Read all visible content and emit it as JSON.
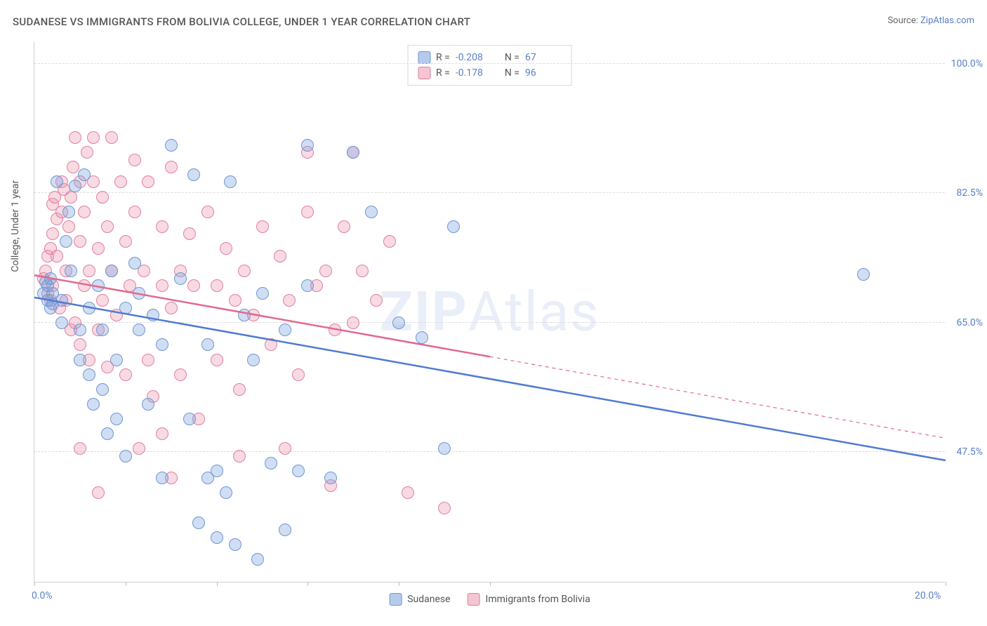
{
  "title": "SUDANESE VS IMMIGRANTS FROM BOLIVIA COLLEGE, UNDER 1 YEAR CORRELATION CHART",
  "source_label": "Source:",
  "source_link": "ZipAtlas.com",
  "y_axis_label": "College, Under 1 year",
  "watermark": {
    "part1": "ZIP",
    "part2": "Atlas"
  },
  "chart": {
    "type": "scatter",
    "background_color": "#ffffff",
    "grid_color": "#dcdcdc",
    "axis_color": "#d0d0d0",
    "xlim": [
      0,
      20
    ],
    "ylim": [
      30,
      103
    ],
    "x_ticks": [
      0,
      2,
      4,
      6,
      8,
      10,
      20
    ],
    "x_tick_labels": {
      "0": "0.0%",
      "20": "20.0%"
    },
    "y_ticks": [
      47.5,
      65.0,
      82.5,
      100.0
    ],
    "y_tick_labels": [
      "47.5%",
      "65.0%",
      "82.5%",
      "100.0%"
    ],
    "label_fontsize": 14,
    "label_color": "#5a7fc7",
    "series": {
      "sudanese": {
        "label": "Sudanese",
        "fill": "rgba(120,160,220,0.35)",
        "stroke": "#6f95d4",
        "R": "-0.208",
        "N": "67",
        "regression": {
          "x1": 0,
          "y1": 68.5,
          "x2": 20,
          "y2": 46.5,
          "solid_to_x": 20,
          "color": "#4f7bd0",
          "width": 2.5
        },
        "points": [
          [
            0.2,
            69
          ],
          [
            0.25,
            70.5
          ],
          [
            0.3,
            68
          ],
          [
            0.3,
            70
          ],
          [
            0.35,
            67
          ],
          [
            0.35,
            71
          ],
          [
            0.4,
            69
          ],
          [
            0.4,
            67.5
          ],
          [
            0.5,
            84
          ],
          [
            0.6,
            68
          ],
          [
            0.6,
            65
          ],
          [
            0.7,
            76
          ],
          [
            0.75,
            80
          ],
          [
            0.8,
            72
          ],
          [
            0.9,
            83.5
          ],
          [
            1.0,
            64
          ],
          [
            1.0,
            60
          ],
          [
            1.1,
            85
          ],
          [
            1.2,
            58
          ],
          [
            1.2,
            67
          ],
          [
            1.3,
            54
          ],
          [
            1.4,
            70
          ],
          [
            1.5,
            64
          ],
          [
            1.5,
            56
          ],
          [
            1.6,
            50
          ],
          [
            1.7,
            72
          ],
          [
            1.8,
            60
          ],
          [
            1.8,
            52
          ],
          [
            2.0,
            67
          ],
          [
            2.0,
            47
          ],
          [
            2.2,
            73
          ],
          [
            2.3,
            69
          ],
          [
            2.3,
            64
          ],
          [
            2.5,
            54
          ],
          [
            2.6,
            66
          ],
          [
            2.8,
            62
          ],
          [
            2.8,
            44
          ],
          [
            3.0,
            89
          ],
          [
            3.2,
            71
          ],
          [
            3.4,
            52
          ],
          [
            3.5,
            85
          ],
          [
            3.6,
            38
          ],
          [
            3.8,
            62
          ],
          [
            3.8,
            44
          ],
          [
            4.0,
            45
          ],
          [
            4.2,
            42
          ],
          [
            4.3,
            84
          ],
          [
            4.4,
            35
          ],
          [
            4.6,
            66
          ],
          [
            4.8,
            60
          ],
          [
            5.0,
            69
          ],
          [
            5.2,
            46
          ],
          [
            5.5,
            64
          ],
          [
            5.8,
            45
          ],
          [
            6.0,
            70
          ],
          [
            6.0,
            89
          ],
          [
            6.5,
            44
          ],
          [
            7.0,
            88
          ],
          [
            7.4,
            80
          ],
          [
            8.0,
            65
          ],
          [
            8.5,
            63
          ],
          [
            9.0,
            48
          ],
          [
            9.2,
            78
          ],
          [
            5.5,
            37
          ],
          [
            4.0,
            36
          ],
          [
            4.9,
            33
          ],
          [
            18.2,
            71.5
          ]
        ]
      },
      "bolivia": {
        "label": "Immigrants from Bolivia",
        "fill": "rgba(235,150,175,0.35)",
        "stroke": "#e27f9e",
        "R": "-0.178",
        "N": "96",
        "regression": {
          "x1": 0,
          "y1": 71.5,
          "x2": 20,
          "y2": 49.5,
          "solid_to_x": 10,
          "color": "#e06a8f",
          "width": 2.5
        },
        "points": [
          [
            0.2,
            71
          ],
          [
            0.25,
            72
          ],
          [
            0.3,
            69
          ],
          [
            0.3,
            74
          ],
          [
            0.35,
            68
          ],
          [
            0.35,
            75
          ],
          [
            0.4,
            70
          ],
          [
            0.4,
            77
          ],
          [
            0.4,
            81
          ],
          [
            0.45,
            82
          ],
          [
            0.5,
            79
          ],
          [
            0.5,
            74
          ],
          [
            0.55,
            67
          ],
          [
            0.6,
            84
          ],
          [
            0.6,
            80
          ],
          [
            0.65,
            83
          ],
          [
            0.7,
            72
          ],
          [
            0.7,
            68
          ],
          [
            0.75,
            78
          ],
          [
            0.8,
            64
          ],
          [
            0.8,
            82
          ],
          [
            0.85,
            86
          ],
          [
            0.9,
            90
          ],
          [
            0.9,
            65
          ],
          [
            1.0,
            84
          ],
          [
            1.0,
            76
          ],
          [
            1.0,
            62
          ],
          [
            1.1,
            80
          ],
          [
            1.1,
            70
          ],
          [
            1.15,
            88
          ],
          [
            1.2,
            72
          ],
          [
            1.2,
            60
          ],
          [
            1.3,
            84
          ],
          [
            1.3,
            90
          ],
          [
            1.4,
            75
          ],
          [
            1.4,
            64
          ],
          [
            1.5,
            68
          ],
          [
            1.5,
            82
          ],
          [
            1.6,
            59
          ],
          [
            1.6,
            78
          ],
          [
            1.7,
            72
          ],
          [
            1.7,
            90
          ],
          [
            1.8,
            66
          ],
          [
            1.9,
            84
          ],
          [
            2.0,
            58
          ],
          [
            2.0,
            76
          ],
          [
            2.1,
            70
          ],
          [
            2.2,
            80
          ],
          [
            2.2,
            87
          ],
          [
            2.3,
            48
          ],
          [
            2.4,
            72
          ],
          [
            2.5,
            60
          ],
          [
            2.5,
            84
          ],
          [
            2.6,
            55
          ],
          [
            2.8,
            70
          ],
          [
            2.8,
            78
          ],
          [
            3.0,
            67
          ],
          [
            3.0,
            86
          ],
          [
            3.2,
            72
          ],
          [
            3.2,
            58
          ],
          [
            3.4,
            77
          ],
          [
            3.5,
            70
          ],
          [
            3.6,
            52
          ],
          [
            3.8,
            80
          ],
          [
            4.0,
            70
          ],
          [
            4.0,
            60
          ],
          [
            4.2,
            75
          ],
          [
            4.4,
            68
          ],
          [
            4.5,
            56
          ],
          [
            4.6,
            72
          ],
          [
            4.8,
            66
          ],
          [
            5.0,
            78
          ],
          [
            5.2,
            62
          ],
          [
            5.4,
            74
          ],
          [
            5.6,
            68
          ],
          [
            5.8,
            58
          ],
          [
            6.0,
            80
          ],
          [
            6.0,
            88
          ],
          [
            6.2,
            70
          ],
          [
            6.4,
            72
          ],
          [
            6.6,
            64
          ],
          [
            6.8,
            78
          ],
          [
            7.0,
            65
          ],
          [
            7.2,
            72
          ],
          [
            7.5,
            68
          ],
          [
            7.8,
            76
          ],
          [
            7.0,
            88
          ],
          [
            4.5,
            47
          ],
          [
            3.0,
            44
          ],
          [
            2.8,
            50
          ],
          [
            5.5,
            48
          ],
          [
            6.5,
            43
          ],
          [
            8.2,
            42
          ],
          [
            9.0,
            40
          ],
          [
            1.4,
            42
          ],
          [
            1.0,
            48
          ]
        ]
      }
    }
  },
  "legend_top": {
    "rows": [
      {
        "swatch": "rgba(120,160,220,0.55)",
        "swatch_border": "#6f95d4",
        "R_label": "R =",
        "R": "-0.208",
        "N_label": "N =",
        "N": "67"
      },
      {
        "swatch": "rgba(235,150,175,0.55)",
        "swatch_border": "#e27f9e",
        "R_label": "R =",
        "R": "-0.178",
        "N_label": "N =",
        "N": "96"
      }
    ]
  },
  "legend_bottom": {
    "items": [
      {
        "swatch": "rgba(120,160,220,0.55)",
        "swatch_border": "#6f95d4",
        "label": "Sudanese"
      },
      {
        "swatch": "rgba(235,150,175,0.55)",
        "swatch_border": "#e27f9e",
        "label": "Immigrants from Bolivia"
      }
    ]
  }
}
